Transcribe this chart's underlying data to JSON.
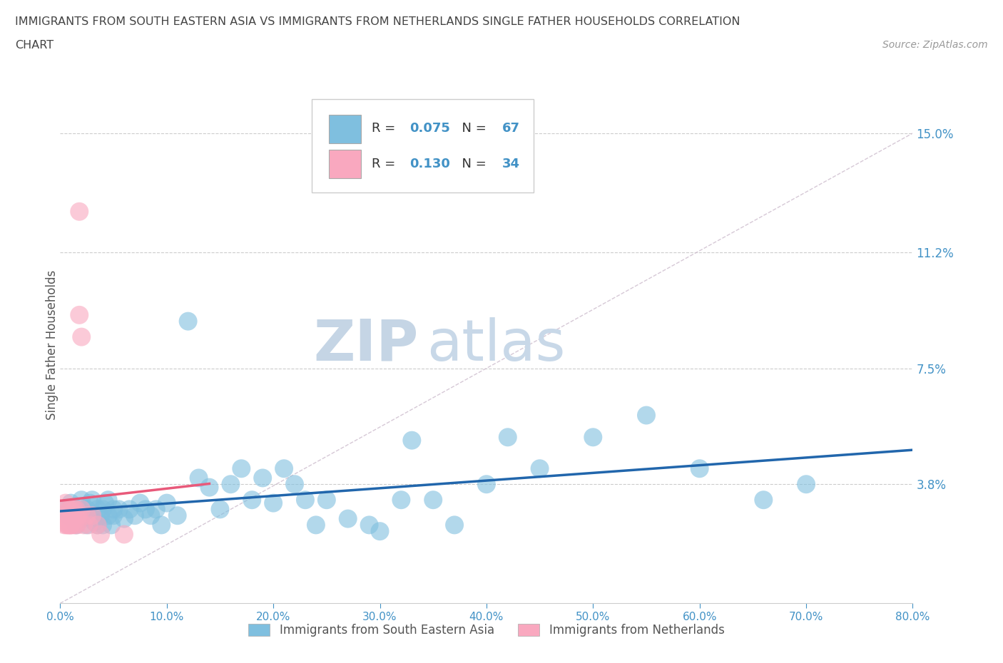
{
  "title_line1": "IMMIGRANTS FROM SOUTH EASTERN ASIA VS IMMIGRANTS FROM NETHERLANDS SINGLE FATHER HOUSEHOLDS CORRELATION",
  "title_line2": "CHART",
  "source_text": "Source: ZipAtlas.com",
  "ylabel": "Single Father Households",
  "xlim": [
    0.0,
    0.8
  ],
  "ylim": [
    0.0,
    0.165
  ],
  "yticks": [
    0.038,
    0.075,
    0.112,
    0.15
  ],
  "ytick_labels": [
    "3.8%",
    "7.5%",
    "11.2%",
    "15.0%"
  ],
  "xticks": [
    0.0,
    0.1,
    0.2,
    0.3,
    0.4,
    0.5,
    0.6,
    0.7,
    0.8
  ],
  "xtick_labels": [
    "0.0%",
    "10.0%",
    "20.0%",
    "30.0%",
    "40.0%",
    "50.0%",
    "60.0%",
    "70.0%",
    "80.0%"
  ],
  "blue_color": "#7fbfdf",
  "pink_color": "#f9a8bf",
  "trend_blue": "#2166ac",
  "trend_pink": "#e8597a",
  "diag_color": "#ccbbcc",
  "axis_color": "#4292c6",
  "watermark_color": "#c8d8e8",
  "R_blue": 0.075,
  "N_blue": 67,
  "R_pink": 0.13,
  "N_pink": 34,
  "blue_scatter_x": [
    0.005,
    0.008,
    0.01,
    0.012,
    0.015,
    0.015,
    0.018,
    0.02,
    0.02,
    0.022,
    0.025,
    0.025,
    0.028,
    0.03,
    0.03,
    0.032,
    0.035,
    0.035,
    0.038,
    0.04,
    0.04,
    0.042,
    0.045,
    0.045,
    0.048,
    0.05,
    0.05,
    0.055,
    0.06,
    0.065,
    0.07,
    0.075,
    0.08,
    0.085,
    0.09,
    0.095,
    0.1,
    0.11,
    0.12,
    0.13,
    0.14,
    0.15,
    0.16,
    0.17,
    0.18,
    0.19,
    0.2,
    0.21,
    0.22,
    0.23,
    0.24,
    0.25,
    0.27,
    0.29,
    0.3,
    0.32,
    0.33,
    0.35,
    0.37,
    0.4,
    0.42,
    0.45,
    0.5,
    0.55,
    0.6,
    0.66,
    0.7
  ],
  "blue_scatter_y": [
    0.03,
    0.028,
    0.032,
    0.028,
    0.03,
    0.025,
    0.03,
    0.027,
    0.033,
    0.028,
    0.03,
    0.025,
    0.032,
    0.028,
    0.033,
    0.026,
    0.03,
    0.025,
    0.028,
    0.03,
    0.025,
    0.032,
    0.028,
    0.033,
    0.025,
    0.03,
    0.028,
    0.03,
    0.027,
    0.03,
    0.028,
    0.032,
    0.03,
    0.028,
    0.03,
    0.025,
    0.032,
    0.028,
    0.09,
    0.04,
    0.037,
    0.03,
    0.038,
    0.043,
    0.033,
    0.04,
    0.032,
    0.043,
    0.038,
    0.033,
    0.025,
    0.033,
    0.027,
    0.025,
    0.023,
    0.033,
    0.052,
    0.033,
    0.025,
    0.038,
    0.053,
    0.043,
    0.053,
    0.06,
    0.043,
    0.033,
    0.038
  ],
  "pink_scatter_x": [
    0.003,
    0.004,
    0.005,
    0.005,
    0.006,
    0.007,
    0.007,
    0.008,
    0.008,
    0.009,
    0.009,
    0.01,
    0.01,
    0.01,
    0.011,
    0.012,
    0.012,
    0.013,
    0.014,
    0.015,
    0.015,
    0.016,
    0.017,
    0.018,
    0.018,
    0.02,
    0.02,
    0.022,
    0.025,
    0.027,
    0.03,
    0.035,
    0.038,
    0.06
  ],
  "pink_scatter_y": [
    0.03,
    0.025,
    0.028,
    0.032,
    0.025,
    0.028,
    0.025,
    0.03,
    0.025,
    0.027,
    0.025,
    0.03,
    0.025,
    0.025,
    0.028,
    0.025,
    0.028,
    0.03,
    0.025,
    0.028,
    0.03,
    0.025,
    0.028,
    0.092,
    0.125,
    0.03,
    0.085,
    0.025,
    0.028,
    0.025,
    0.028,
    0.025,
    0.022,
    0.022
  ],
  "background_color": "#ffffff",
  "legend_color_R": "#333333",
  "legend_color_N": "#4292c6"
}
